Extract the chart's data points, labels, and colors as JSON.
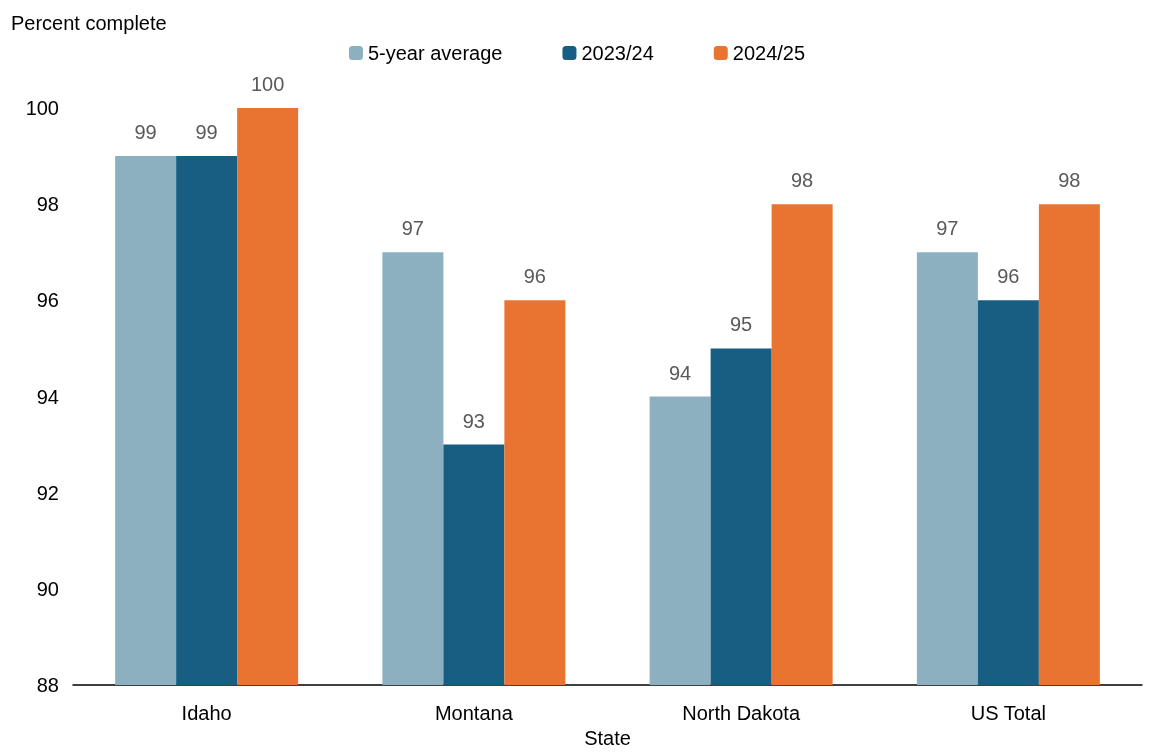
{
  "chart_data": {
    "type": "bar",
    "ylabel": "Percent complete",
    "xlabel": "State",
    "categories": [
      "Idaho",
      "Montana",
      "North Dakota",
      "US Total"
    ],
    "series": [
      {
        "name": "5-year average",
        "color": "#8db0c1",
        "values": [
          99,
          97,
          94,
          97
        ]
      },
      {
        "name": "2023/24",
        "color": "#175e82",
        "values": [
          99,
          93,
          95,
          96
        ]
      },
      {
        "name": "2024/25",
        "color": "#e97432",
        "values": [
          100,
          96,
          98,
          98
        ]
      }
    ],
    "ylim": [
      88,
      100
    ],
    "yticks": [
      88,
      90,
      92,
      94,
      96,
      98,
      100
    ],
    "grid": false,
    "legend": "top",
    "data_labels": true
  }
}
